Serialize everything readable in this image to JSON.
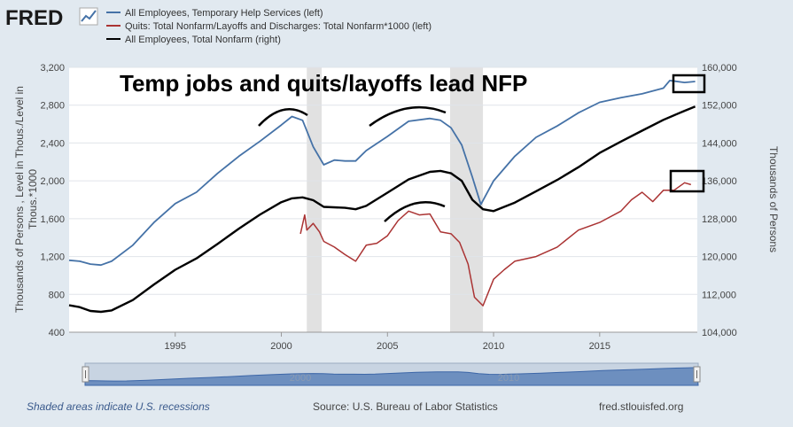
{
  "brand": {
    "name": "FRED",
    "line_color": "#4572a7",
    "temp_color": "#4572a7",
    "quits_color": "#aa3333",
    "nfp_color": "#000000"
  },
  "footer": {
    "recession_note": "Shaded areas indicate U.S. recessions",
    "source": "Source: U.S. Bureau of Labor Statistics",
    "site": "fred.stlouisfed.org"
  },
  "chart_data": {
    "type": "line",
    "title": "Temp jobs and quits/layoffs lead NFP",
    "legend": [
      "All Employees, Temporary Help Services (left)",
      "Quits: Total Nonfarm/Layoffs and Discharges: Total Nonfarm*1000 (left)",
      "All Employees, Total Nonfarm (right)"
    ],
    "ylabel_left": "Thousands of Persons , Level in Thous./Level in Thous.*1000",
    "ylabel_right": "Thousands of Persons",
    "ylim_left": [
      400,
      3200
    ],
    "ylim_right": [
      104000,
      160000
    ],
    "xlim": [
      1990.0,
      2019.6
    ],
    "yticks_left": [
      "400",
      "800",
      "1,200",
      "1,600",
      "2,000",
      "2,400",
      "2,800",
      "3,200"
    ],
    "yticks_right": [
      "104,000",
      "112,000",
      "120,000",
      "128,000",
      "136,000",
      "144,000",
      "152,000",
      "160,000"
    ],
    "xticks": [
      "1995",
      "2000",
      "2005",
      "2010",
      "2015"
    ],
    "navigator_labels": [
      "2000",
      "2010"
    ],
    "recessions": [
      [
        2001.2,
        2001.9
      ],
      [
        2007.95,
        2009.5
      ]
    ],
    "series": [
      {
        "name": "All Employees, Temporary Help Services (left)",
        "axis": "left",
        "x": [
          1990.0,
          1990.5,
          1991.0,
          1991.5,
          1992.0,
          1993.0,
          1994.0,
          1995.0,
          1996.0,
          1997.0,
          1998.0,
          1999.0,
          2000.0,
          2000.5,
          2001.0,
          2001.5,
          2002.0,
          2002.5,
          2003.0,
          2003.5,
          2004.0,
          2005.0,
          2006.0,
          2007.0,
          2007.5,
          2008.0,
          2008.5,
          2009.0,
          2009.4,
          2010.0,
          2011.0,
          2012.0,
          2013.0,
          2014.0,
          2015.0,
          2016.0,
          2017.0,
          2018.0,
          2018.3,
          2019.0,
          2019.5
        ],
        "values": [
          1160,
          1150,
          1120,
          1110,
          1150,
          1320,
          1560,
          1760,
          1880,
          2080,
          2260,
          2420,
          2590,
          2680,
          2640,
          2360,
          2170,
          2220,
          2210,
          2210,
          2320,
          2470,
          2630,
          2660,
          2640,
          2560,
          2380,
          2040,
          1750,
          2000,
          2260,
          2460,
          2580,
          2720,
          2830,
          2880,
          2920,
          2980,
          3060,
          3040,
          3050
        ]
      },
      {
        "name": "Quits: Total Nonfarm/Layoffs and Discharges: Total Nonfarm*1000 (left)",
        "axis": "left",
        "x": [
          2000.9,
          2001.1,
          2001.2,
          2001.5,
          2001.8,
          2002.0,
          2002.5,
          2003.0,
          2003.5,
          2004.0,
          2004.5,
          2005.0,
          2005.5,
          2006.0,
          2006.5,
          2007.0,
          2007.5,
          2008.0,
          2008.4,
          2008.8,
          2009.1,
          2009.5,
          2010.0,
          2010.5,
          2011.0,
          2012.0,
          2013.0,
          2014.0,
          2015.0,
          2016.0,
          2016.5,
          2017.0,
          2017.5,
          2018.0,
          2018.5,
          2019.0,
          2019.3
        ],
        "values": [
          1440,
          1640,
          1480,
          1550,
          1460,
          1360,
          1300,
          1220,
          1150,
          1320,
          1340,
          1420,
          1580,
          1680,
          1640,
          1650,
          1460,
          1440,
          1350,
          1120,
          770,
          680,
          960,
          1060,
          1150,
          1200,
          1300,
          1480,
          1560,
          1680,
          1800,
          1880,
          1780,
          1900,
          1900,
          1980,
          1960
        ]
      },
      {
        "name": "All Employees, Total Nonfarm (right)",
        "axis": "right",
        "x": [
          1990.0,
          1990.5,
          1991.0,
          1991.5,
          1992.0,
          1993.0,
          1994.0,
          1995.0,
          1996.0,
          1997.0,
          1998.0,
          1999.0,
          2000.0,
          2000.5,
          2001.0,
          2001.5,
          2002.0,
          2003.0,
          2003.5,
          2004.0,
          2005.0,
          2006.0,
          2007.0,
          2007.5,
          2008.0,
          2008.5,
          2009.0,
          2009.5,
          2010.0,
          2010.5,
          2011.0,
          2012.0,
          2013.0,
          2014.0,
          2015.0,
          2016.0,
          2017.0,
          2018.0,
          2019.0,
          2019.5
        ],
        "values": [
          109700,
          109300,
          108500,
          108300,
          108600,
          110800,
          114100,
          117200,
          119600,
          122700,
          125900,
          128900,
          131500,
          132300,
          132500,
          131900,
          130500,
          130300,
          130000,
          130700,
          133500,
          136300,
          137900,
          138100,
          137600,
          136000,
          132000,
          130000,
          129600,
          130500,
          131400,
          133800,
          136200,
          138900,
          141900,
          144300,
          146600,
          148900,
          150800,
          151700
        ]
      }
    ]
  }
}
